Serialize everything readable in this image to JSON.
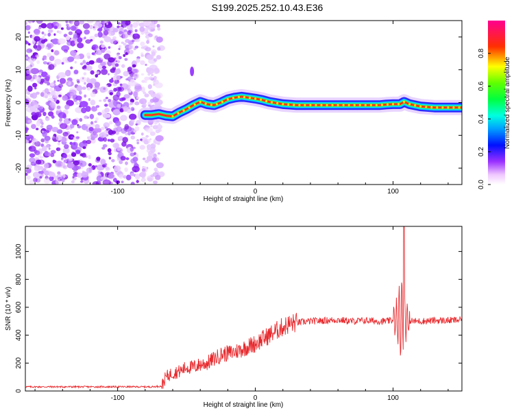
{
  "title": "S199.2025.252.10.43.E36",
  "colors": {
    "snr_line": "#e8292d",
    "axis": "#000000",
    "colorbar_stops": [
      "#ffffff",
      "#ff00ff",
      "#7a00ff",
      "#0000ff",
      "#00ffff",
      "#00ff00",
      "#ffff00",
      "#ff0000",
      "#ff00a0"
    ]
  },
  "chart_data": [
    {
      "type": "heatmap",
      "title": "S199.2025.252.10.43.E36",
      "xlabel": "Height of straight line (km)",
      "ylabel": "Frequency (Hz)",
      "xlim": [
        -167,
        150
      ],
      "ylim": [
        -25,
        25
      ],
      "xticks": [
        -100,
        0,
        100
      ],
      "xtick_labels": [
        "-100",
        "0",
        "100"
      ],
      "yticks": [
        -20,
        -10,
        0,
        10,
        20
      ],
      "ytick_labels": [
        "-20",
        "-10",
        "0",
        "10",
        "20"
      ],
      "noise_region_x": [
        -167,
        -70
      ],
      "ridge": {
        "x": [
          -80,
          -75,
          -70,
          -65,
          -60,
          -55,
          -50,
          -45,
          -40,
          -35,
          -30,
          -25,
          -20,
          -15,
          -10,
          -5,
          0,
          5,
          10,
          20,
          30,
          40,
          50,
          60,
          70,
          80,
          90,
          95,
          100,
          105,
          108,
          112,
          120,
          130,
          140,
          150
        ],
        "freq": [
          -3.8,
          -3.8,
          -3.5,
          -4.0,
          -4.2,
          -3.0,
          -2.0,
          -0.8,
          0.2,
          -0.5,
          -0.8,
          0.0,
          1.0,
          1.5,
          1.8,
          1.5,
          1.2,
          0.8,
          0.2,
          -0.5,
          -0.8,
          -0.8,
          -0.8,
          -0.8,
          -0.8,
          -0.8,
          -0.8,
          -0.6,
          -0.5,
          -0.5,
          0.2,
          -0.5,
          -1.2,
          -1.5,
          -1.5,
          -1.5
        ]
      },
      "colorbar": {
        "label": "Normalized spectral amplitude",
        "range": [
          0,
          1
        ],
        "ticks": [
          0.0,
          0.2,
          0.4,
          0.6,
          0.8
        ],
        "tick_labels": [
          "0.0",
          "0.2",
          "0.4",
          "0.6",
          "0.8"
        ]
      }
    },
    {
      "type": "line",
      "xlabel": "Height of straight line (km)",
      "ylabel": "SNR (10 * v/v)",
      "xlim": [
        -167,
        150
      ],
      "ylim": [
        0,
        1180
      ],
      "xticks": [
        -100,
        0,
        100
      ],
      "xtick_labels": [
        "-100",
        "0",
        "100"
      ],
      "yticks": [
        0,
        200,
        400,
        600,
        800,
        1000
      ],
      "ytick_labels": [
        "0",
        "200",
        "400",
        "600",
        "800",
        "1000"
      ],
      "series": [
        {
          "name": "SNR",
          "x": [
            -167,
            -150,
            -130,
            -110,
            -90,
            -75,
            -68,
            -65,
            -60,
            -55,
            -50,
            -45,
            -40,
            -35,
            -30,
            -25,
            -20,
            -15,
            -10,
            -5,
            0,
            5,
            10,
            15,
            20,
            25,
            30,
            40,
            50,
            60,
            70,
            80,
            90,
            95,
            100,
            103,
            105,
            107,
            108,
            109,
            110,
            112,
            115,
            120,
            130,
            140,
            150
          ],
          "y": [
            30,
            30,
            30,
            30,
            30,
            30,
            35,
            100,
            130,
            140,
            170,
            170,
            190,
            200,
            230,
            260,
            270,
            280,
            300,
            320,
            340,
            370,
            400,
            430,
            460,
            480,
            490,
            500,
            505,
            510,
            500,
            505,
            500,
            500,
            505,
            510,
            515,
            520,
            540,
            520,
            510,
            505,
            500,
            500,
            505,
            505,
            510
          ]
        }
      ]
    }
  ]
}
